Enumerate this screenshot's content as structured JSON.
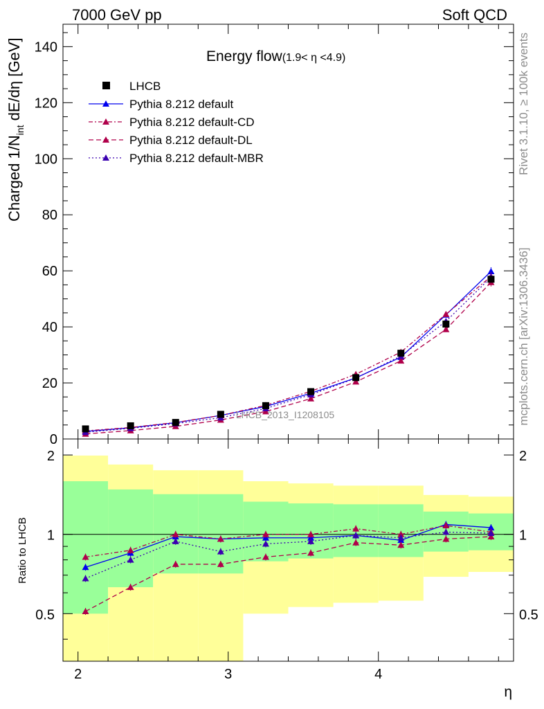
{
  "header": {
    "left": "7000 GeV pp",
    "right": "Soft QCD"
  },
  "side_labels": {
    "rivet": "Rivet 3.1.10, ≥ 100k events",
    "mcplots": "mcplots.cern.ch [arXiv:1306.3436]"
  },
  "watermark": "LHCB_2013_I1208105",
  "chart_data": [
    {
      "type": "line",
      "title": "Energy flow",
      "title_sub": "(1.9< η <4.9)",
      "ylabel_main": "Charged 1/N",
      "ylabel_sub": "int",
      "ylabel_tail": " dE/dη [GeV]",
      "xlabel": "η",
      "xlim": [
        1.9,
        4.9
      ],
      "ylim": [
        0,
        148
      ],
      "yticks": [
        0,
        20,
        40,
        60,
        80,
        100,
        120,
        140
      ],
      "yticklabels": [
        "0",
        "20",
        "40",
        "60",
        "80",
        "100",
        "120",
        "140"
      ],
      "x": [
        2.05,
        2.35,
        2.65,
        2.95,
        3.25,
        3.55,
        3.85,
        4.15,
        4.45,
        4.75
      ],
      "legend_position": "top-left",
      "series": [
        {
          "name": "LHCB",
          "kind": "data",
          "color": "#000000",
          "values": [
            3.6,
            4.7,
            5.9,
            8.8,
            11.9,
            16.9,
            21.9,
            30.6,
            41.0,
            57.0
          ]
        },
        {
          "name": "Pythia 8.212 default",
          "kind": "solid",
          "color": "#0000ee",
          "values": [
            2.7,
            4.0,
            5.8,
            8.4,
            11.6,
            16.3,
            21.8,
            29.2,
            44.3,
            59.8
          ]
        },
        {
          "name": "Pythia 8.212 default-CD",
          "kind": "dashdot",
          "color": "#b0004a",
          "values": [
            2.9,
            4.1,
            5.9,
            8.4,
            12.0,
            17.0,
            23.1,
            31.0,
            44.5,
            58.0
          ]
        },
        {
          "name": "Pythia 8.212 default-DL",
          "kind": "dashed",
          "color": "#b0004a",
          "values": [
            1.8,
            3.0,
            4.5,
            6.8,
            9.8,
            14.4,
            20.4,
            27.9,
            39.1,
            55.9
          ]
        },
        {
          "name": "Pythia 8.212 default-MBR",
          "kind": "dotted",
          "color": "#3a00b0",
          "values": [
            2.4,
            3.8,
            5.5,
            7.6,
            10.9,
            15.8,
            21.7,
            29.6,
            42.0,
            57.7
          ]
        }
      ]
    },
    {
      "type": "line",
      "ylabel": "Ratio to LHCB",
      "xlabel": "η",
      "xlim": [
        1.9,
        4.9
      ],
      "ylim": [
        0.33,
        2.3
      ],
      "yscale": "log",
      "yticks": [
        0.5,
        1,
        2
      ],
      "yticklabels": [
        "0.5",
        "1",
        "2"
      ],
      "xticks": [
        2,
        3,
        4
      ],
      "xticklabels": [
        "2",
        "3",
        "4"
      ],
      "x": [
        2.05,
        2.35,
        2.65,
        2.95,
        3.25,
        3.55,
        3.85,
        4.15,
        4.45,
        4.75
      ],
      "bin_edges": [
        1.9,
        2.2,
        2.5,
        2.8,
        3.1,
        3.4,
        3.7,
        4.0,
        4.3,
        4.6,
        4.9
      ],
      "band_outer": {
        "color": "#ffff99",
        "low": [
          0.33,
          0.33,
          0.33,
          0.33,
          0.5,
          0.53,
          0.55,
          0.56,
          0.69,
          0.72
        ],
        "high": [
          1.99,
          1.84,
          1.75,
          1.75,
          1.59,
          1.56,
          1.53,
          1.53,
          1.41,
          1.39
        ]
      },
      "band_inner": {
        "color": "#99ff99",
        "low": [
          0.5,
          0.63,
          0.71,
          0.71,
          0.79,
          0.81,
          0.82,
          0.82,
          0.86,
          0.87
        ],
        "high": [
          1.59,
          1.48,
          1.42,
          1.42,
          1.33,
          1.31,
          1.3,
          1.3,
          1.22,
          1.2
        ]
      },
      "series": [
        {
          "name": "Pythia 8.212 default",
          "kind": "solid",
          "color": "#0000ee",
          "values": [
            0.75,
            0.85,
            0.98,
            0.96,
            0.97,
            0.97,
            0.99,
            0.95,
            1.09,
            1.06
          ]
        },
        {
          "name": "Pythia 8.212 default-CD",
          "kind": "dashdot",
          "color": "#b0004a",
          "values": [
            0.82,
            0.87,
            1.0,
            0.96,
            1.0,
            1.0,
            1.05,
            1.0,
            1.08,
            1.02
          ]
        },
        {
          "name": "Pythia 8.212 default-DL",
          "kind": "dashed",
          "color": "#b0004a",
          "values": [
            0.51,
            0.63,
            0.77,
            0.77,
            0.82,
            0.85,
            0.93,
            0.91,
            0.96,
            0.98
          ]
        },
        {
          "name": "Pythia 8.212 default-MBR",
          "kind": "dotted",
          "color": "#3a00b0",
          "values": [
            0.68,
            0.8,
            0.94,
            0.86,
            0.92,
            0.94,
            0.99,
            0.97,
            1.02,
            1.01
          ]
        }
      ]
    }
  ]
}
